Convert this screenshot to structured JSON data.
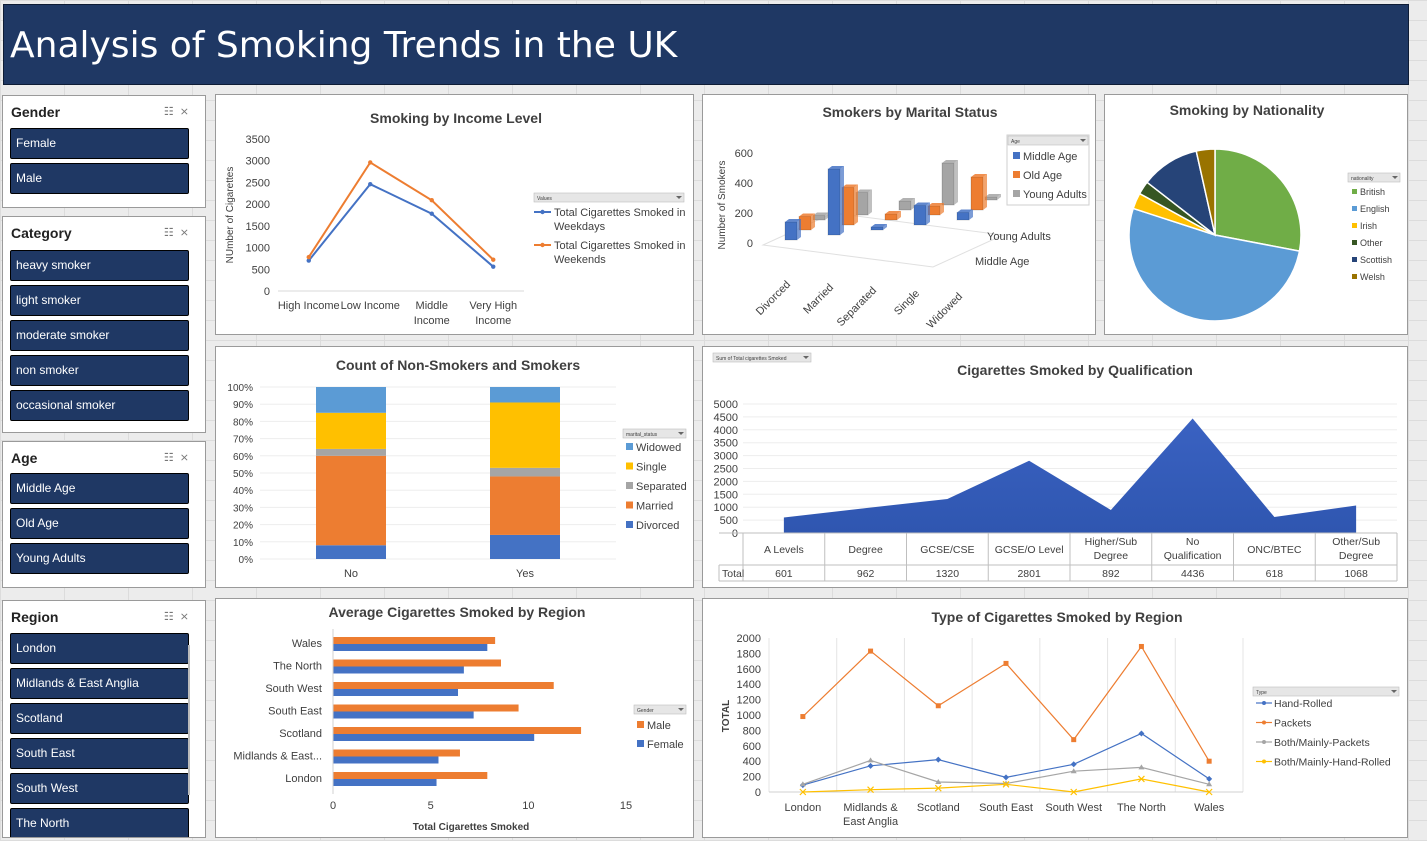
{
  "title": "Analysis of Smoking Trends in the UK",
  "slicers": {
    "gender": {
      "title": "Gender",
      "items": [
        "Female",
        "Male"
      ]
    },
    "category": {
      "title": "Category",
      "items": [
        "heavy smoker",
        "light smoker",
        "moderate smoker",
        "non smoker",
        "occasional smoker"
      ]
    },
    "age": {
      "title": "Age",
      "items": [
        "Middle Age",
        "Old Age",
        "Young Adults"
      ]
    },
    "region": {
      "title": "Region",
      "items": [
        "London",
        "Midlands & East Anglia",
        "Scotland",
        "South East",
        "South West",
        "The North"
      ]
    }
  },
  "colors": {
    "blue": "#4472c4",
    "orange": "#ed7d31",
    "gray": "#a5a5a5",
    "yellow": "#ffc000",
    "lightblue": "#5b9bd5",
    "green": "#70ad47",
    "navy": "#1f3864"
  },
  "charts": {
    "income": {
      "title": "Smoking  by Income Level",
      "ylabel": "NUmber of Cigarettes",
      "field_button": "Values",
      "categories": [
        [
          "High Income"
        ],
        [
          "Low Income"
        ],
        [
          "Middle",
          "Income"
        ],
        [
          "Very High",
          "Income"
        ]
      ],
      "yticks": [
        "0",
        "500",
        "1000",
        "1500",
        "2000",
        "2500",
        "3000",
        "3500"
      ],
      "series": [
        {
          "name": [
            "Total Cigarettes Smoked in",
            "Weekdays"
          ],
          "values": [
            700,
            2460,
            1780,
            560
          ]
        },
        {
          "name": [
            "Total Cigarettes Smoked in",
            "Weekends"
          ],
          "values": [
            780,
            2960,
            2090,
            720
          ]
        }
      ]
    },
    "marital3d": {
      "title": "Smokers by Marital Status",
      "ylabel": "Number of Smokers",
      "field_button": "Age",
      "categories": [
        "Divorced",
        "Married",
        "Separated",
        "Single",
        "Widowed"
      ],
      "yticks": [
        "0",
        "200",
        "400",
        "600"
      ],
      "depth_labels": [
        "Young Adults",
        "Middle Age"
      ],
      "legend": [
        "Middle Age",
        "Old Age",
        "Young Adults"
      ],
      "values": {
        "Middle Age": [
          120,
          440,
          20,
          130,
          50
        ],
        "Old Age": [
          90,
          250,
          40,
          60,
          220
        ],
        "Young Adults": [
          30,
          150,
          60,
          280,
          20
        ]
      }
    },
    "nationality": {
      "title": "Smoking by Nationality",
      "field_button": "nationality",
      "legend": [
        "British",
        "English",
        "Irish",
        "Other",
        "Scottish",
        "Welsh"
      ],
      "values": [
        28,
        52,
        3,
        2.5,
        11,
        3.5
      ]
    },
    "smokers_count": {
      "title": "Count of Non-Smokers and Smokers",
      "field_button": "marital_status",
      "categories": [
        "No",
        "Yes"
      ],
      "yticks": [
        "0%",
        "10%",
        "20%",
        "30%",
        "40%",
        "50%",
        "60%",
        "70%",
        "80%",
        "90%",
        "100%"
      ],
      "legend": [
        "Widowed",
        "Single",
        "Separated",
        "Married",
        "Divorced"
      ],
      "stacks": {
        "No": {
          "Divorced": 8,
          "Married": 52,
          "Separated": 4,
          "Single": 21,
          "Widowed": 15
        },
        "Yes": {
          "Divorced": 14,
          "Married": 34,
          "Separated": 5,
          "Single": 38,
          "Widowed": 9
        }
      }
    },
    "qualification": {
      "title": "Cigarettes Smoked by Qualification",
      "field_button": "Sum of Total cigarettes Smoked",
      "yticks": [
        "0",
        "500",
        "1000",
        "1500",
        "2000",
        "2500",
        "3000",
        "3500",
        "4000",
        "4500",
        "5000"
      ],
      "categories": [
        [
          "A Levels"
        ],
        [
          "Degree"
        ],
        [
          "GCSE/CSE"
        ],
        [
          "GCSE/O Level"
        ],
        [
          "Higher/Sub",
          "Degree"
        ],
        [
          "No",
          "Qualification"
        ],
        [
          "ONC/BTEC"
        ],
        [
          "Other/Sub",
          "Degree"
        ]
      ],
      "row_label": "Total",
      "values_text": [
        "601",
        "962",
        "1320",
        "2801",
        "892",
        "4436",
        "618",
        "1068"
      ],
      "values": [
        601,
        962,
        1320,
        2801,
        892,
        4436,
        618,
        1068
      ]
    },
    "region_avg": {
      "title": "Average Cigarettes Smoked by Region",
      "xlabel": "Total Cigarettes Smoked",
      "field_button": "Gender",
      "categories": [
        "Wales",
        "The North",
        "South West",
        "South East",
        "Scotland",
        "Midlands & East...",
        "London"
      ],
      "xticks": [
        "0",
        "5",
        "10",
        "15"
      ],
      "legend": [
        "Male",
        "Female"
      ],
      "male": [
        8.3,
        8.6,
        11.3,
        9.5,
        12.7,
        6.5,
        7.9
      ],
      "female": [
        7.9,
        6.7,
        6.4,
        7.2,
        10.3,
        5.4,
        5.3
      ]
    },
    "type_region": {
      "title": "Type of Cigarettes Smoked by Region",
      "ylabel": "TOTAL",
      "field_button": "Type",
      "categories": [
        [
          "London"
        ],
        [
          "Midlands &",
          "East Anglia"
        ],
        [
          "Scotland"
        ],
        [
          "South East"
        ],
        [
          "South West"
        ],
        [
          "The North"
        ],
        [
          "Wales"
        ]
      ],
      "yticks": [
        "0",
        "200",
        "400",
        "600",
        "800",
        "1000",
        "1200",
        "1400",
        "1600",
        "1800",
        "2000"
      ],
      "series": [
        {
          "name": "Hand-Rolled",
          "values": [
            90,
            340,
            420,
            190,
            360,
            760,
            170
          ]
        },
        {
          "name": "Packets",
          "values": [
            980,
            1830,
            1120,
            1670,
            680,
            1890,
            400
          ]
        },
        {
          "name": "Both/Mainly-Packets",
          "values": [
            100,
            410,
            130,
            110,
            270,
            320,
            100
          ]
        },
        {
          "name": "Both/Mainly-Hand-Rolled",
          "values": [
            0,
            30,
            50,
            100,
            0,
            170,
            0
          ]
        }
      ]
    }
  }
}
